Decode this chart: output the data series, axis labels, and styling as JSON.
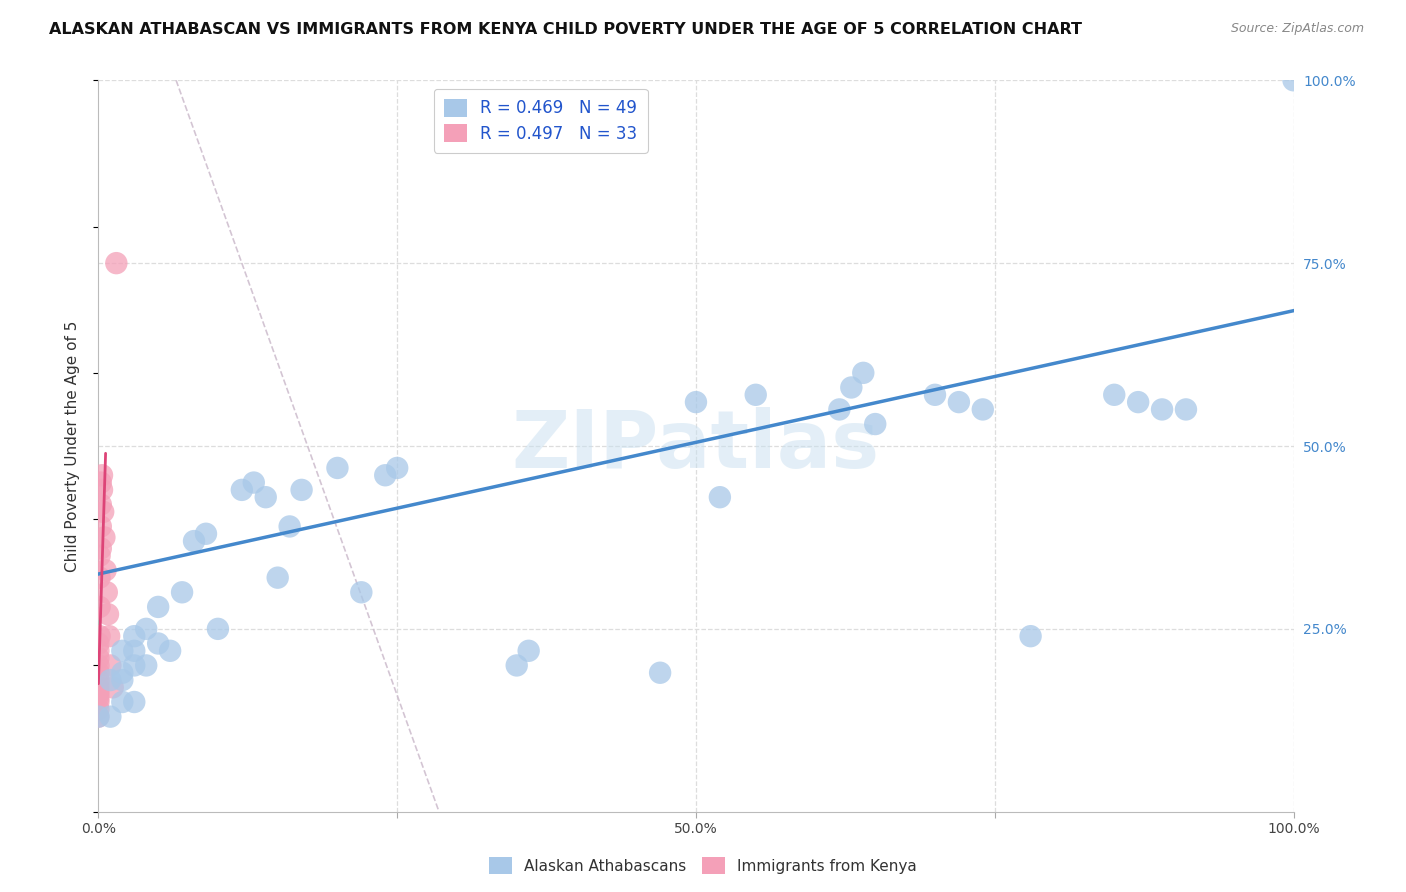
{
  "title": "ALASKAN ATHABASCAN VS IMMIGRANTS FROM KENYA CHILD POVERTY UNDER THE AGE OF 5 CORRELATION CHART",
  "source": "Source: ZipAtlas.com",
  "ylabel": "Child Poverty Under the Age of 5",
  "watermark": "ZIPatlas",
  "legend_r1": "R = 0.469",
  "legend_n1": "N = 49",
  "legend_r2": "R = 0.497",
  "legend_n2": "N = 33",
  "legend_label1": "Alaskan Athabascans",
  "legend_label2": "Immigrants from Kenya",
  "blue_color": "#a8c8e8",
  "pink_color": "#f4a0b8",
  "line_blue": "#4488cc",
  "line_pink": "#dd4477",
  "diag_color": "#ccbbcc",
  "blue_scatter": [
    [
      0.0,
      0.13
    ],
    [
      0.01,
      0.13
    ],
    [
      0.01,
      0.18
    ],
    [
      0.02,
      0.15
    ],
    [
      0.02,
      0.22
    ],
    [
      0.02,
      0.18
    ],
    [
      0.02,
      0.19
    ],
    [
      0.03,
      0.22
    ],
    [
      0.03,
      0.15
    ],
    [
      0.03,
      0.2
    ],
    [
      0.03,
      0.24
    ],
    [
      0.04,
      0.25
    ],
    [
      0.04,
      0.2
    ],
    [
      0.05,
      0.23
    ],
    [
      0.05,
      0.28
    ],
    [
      0.06,
      0.22
    ],
    [
      0.07,
      0.3
    ],
    [
      0.08,
      0.37
    ],
    [
      0.09,
      0.38
    ],
    [
      0.1,
      0.25
    ],
    [
      0.12,
      0.44
    ],
    [
      0.13,
      0.45
    ],
    [
      0.14,
      0.43
    ],
    [
      0.15,
      0.32
    ],
    [
      0.16,
      0.39
    ],
    [
      0.17,
      0.44
    ],
    [
      0.2,
      0.47
    ],
    [
      0.22,
      0.3
    ],
    [
      0.24,
      0.46
    ],
    [
      0.25,
      0.47
    ],
    [
      0.35,
      0.2
    ],
    [
      0.36,
      0.22
    ],
    [
      0.47,
      0.19
    ],
    [
      0.5,
      0.56
    ],
    [
      0.52,
      0.43
    ],
    [
      0.55,
      0.57
    ],
    [
      0.62,
      0.55
    ],
    [
      0.63,
      0.58
    ],
    [
      0.64,
      0.6
    ],
    [
      0.65,
      0.53
    ],
    [
      0.7,
      0.57
    ],
    [
      0.72,
      0.56
    ],
    [
      0.74,
      0.55
    ],
    [
      0.78,
      0.24
    ],
    [
      0.85,
      0.57
    ],
    [
      0.87,
      0.56
    ],
    [
      0.89,
      0.55
    ],
    [
      0.91,
      0.55
    ],
    [
      1.0,
      1.0
    ]
  ],
  "pink_scatter": [
    [
      0.0,
      0.13
    ],
    [
      0.0,
      0.14
    ],
    [
      0.0,
      0.15
    ],
    [
      0.0,
      0.155
    ],
    [
      0.0,
      0.16
    ],
    [
      0.0,
      0.165
    ],
    [
      0.0,
      0.17
    ],
    [
      0.0,
      0.175
    ],
    [
      0.0,
      0.18
    ],
    [
      0.0,
      0.19
    ],
    [
      0.0,
      0.2
    ],
    [
      0.0,
      0.21
    ],
    [
      0.0,
      0.22
    ],
    [
      0.0,
      0.23
    ],
    [
      0.001,
      0.24
    ],
    [
      0.001,
      0.28
    ],
    [
      0.001,
      0.32
    ],
    [
      0.001,
      0.35
    ],
    [
      0.002,
      0.36
    ],
    [
      0.002,
      0.39
    ],
    [
      0.002,
      0.42
    ],
    [
      0.002,
      0.45
    ],
    [
      0.003,
      0.44
    ],
    [
      0.003,
      0.46
    ],
    [
      0.004,
      0.41
    ],
    [
      0.005,
      0.375
    ],
    [
      0.006,
      0.33
    ],
    [
      0.007,
      0.3
    ],
    [
      0.008,
      0.27
    ],
    [
      0.009,
      0.24
    ],
    [
      0.01,
      0.2
    ],
    [
      0.012,
      0.17
    ],
    [
      0.015,
      0.75
    ]
  ],
  "xlim": [
    0.0,
    1.0
  ],
  "ylim": [
    0.0,
    1.0
  ],
  "blue_line_x0": 0.0,
  "blue_line_y0": 0.325,
  "blue_line_x1": 1.0,
  "blue_line_y1": 0.685,
  "pink_line_x0": 0.0,
  "pink_line_y0": 0.175,
  "pink_line_x1": 0.006,
  "pink_line_y1": 0.49,
  "diag_line_x0": 0.065,
  "diag_line_y0": 1.0,
  "diag_line_x1": 0.285,
  "diag_line_y1": 0.0,
  "grid_color": "#dddddd",
  "grid_style": "--",
  "background": "#ffffff",
  "title_fontsize": 11.5,
  "source_fontsize": 9,
  "tick_fontsize": 10,
  "label_fontsize": 11
}
